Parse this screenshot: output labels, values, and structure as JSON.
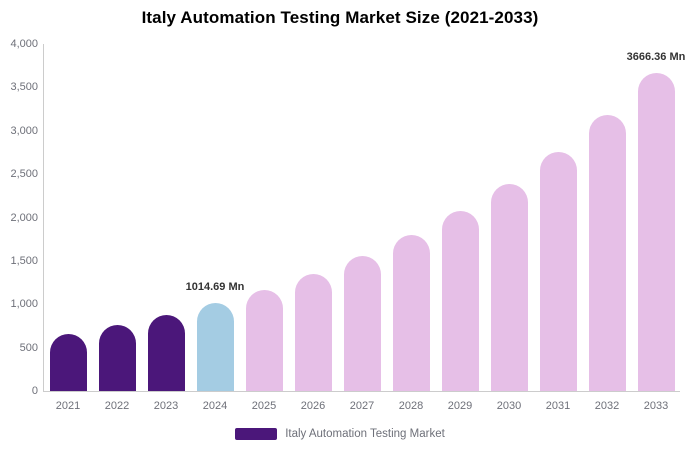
{
  "title": "Italy Automation Testing Market Size (2021-2033)",
  "legend": {
    "label": "Italy Automation Testing Market"
  },
  "colors": {
    "historical": "#4b177a",
    "current": "#a4cce3",
    "forecast": "#e6bfe7",
    "axis_line": "#cccccc",
    "tick_text": "#6e7079",
    "value_label_text": "#333333",
    "title_text": "#000000"
  },
  "chart_data": {
    "type": "bar",
    "title": "Italy Automation Testing Market Size (2021-2033)",
    "unit": "Mn",
    "categories": [
      "2021",
      "2022",
      "2023",
      "2024",
      "2025",
      "2026",
      "2027",
      "2028",
      "2029",
      "2030",
      "2031",
      "2032",
      "2033"
    ],
    "values": [
      661,
      763,
      880,
      1014.69,
      1170,
      1350,
      1557,
      1796,
      2071,
      2389,
      2756,
      3178,
      3666.36
    ],
    "color_roles": [
      "historical",
      "historical",
      "historical",
      "current",
      "forecast",
      "forecast",
      "forecast",
      "forecast",
      "forecast",
      "forecast",
      "forecast",
      "forecast",
      "forecast"
    ],
    "data_labels": [
      {
        "index": 3,
        "text": "1014.69 Mn"
      },
      {
        "index": 12,
        "text": "3666.36 Mn"
      }
    ],
    "ylim": [
      0,
      4000
    ],
    "y_tick_step": 500,
    "y_tick_labels": [
      "0",
      "500",
      "1,000",
      "1,500",
      "2,000",
      "2,500",
      "3,000",
      "3,500",
      "4,000"
    ],
    "xlabel": "",
    "ylabel": "",
    "grid": false,
    "legend_position": "bottom-center",
    "legend_entries": [
      "Italy Automation Testing Market"
    ]
  }
}
